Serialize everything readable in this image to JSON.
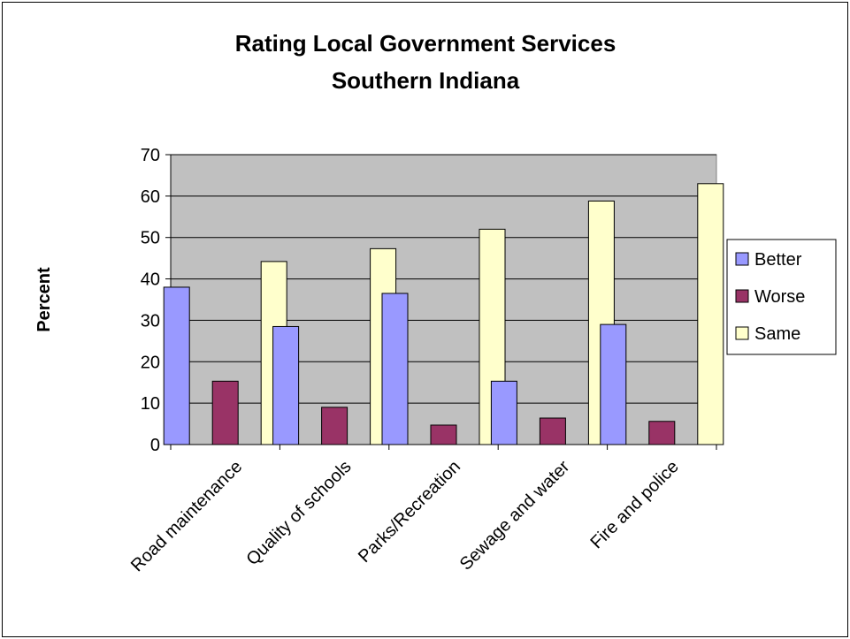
{
  "chart_data": {
    "type": "bar",
    "title": "Rating Local Government Services",
    "subtitle": "Southern Indiana",
    "xlabel": "",
    "ylabel": "Percent",
    "ylim": [
      0,
      70
    ],
    "yticks": [
      0,
      10,
      20,
      30,
      40,
      50,
      60,
      70
    ],
    "grid": true,
    "legend_position": "right",
    "categories": [
      "Road maintenance",
      "Quality of schools",
      "Parks/Recreation",
      "Sewage and water",
      "Fire and police"
    ],
    "series": [
      {
        "name": "Better",
        "color": "#9999ff",
        "values": [
          38,
          28.5,
          36.5,
          15.3,
          29
        ]
      },
      {
        "name": "Worse",
        "color": "#993366",
        "values": [
          15.3,
          9,
          4.7,
          6.4,
          5.6
        ]
      },
      {
        "name": "Same",
        "color": "#ffffcc",
        "values": [
          44.2,
          47.3,
          52,
          58.8,
          63
        ]
      }
    ],
    "plot_background": "#c0c0c0"
  }
}
